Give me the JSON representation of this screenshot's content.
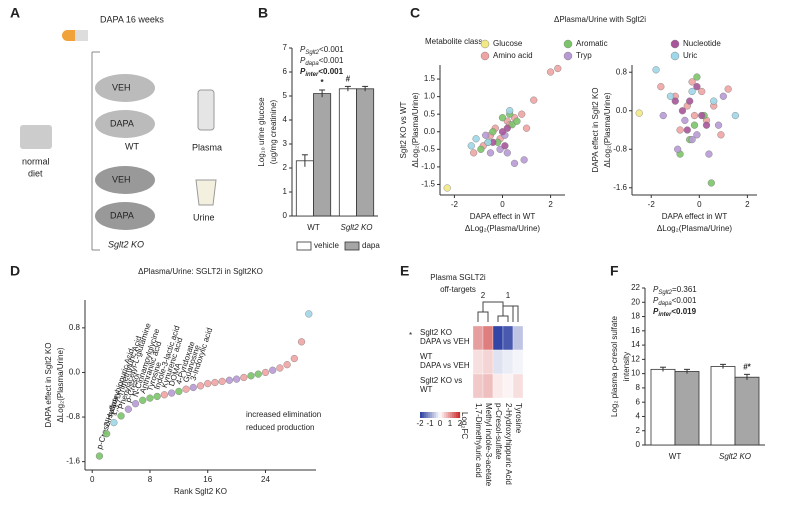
{
  "panel_a": {
    "panel": "A",
    "drug": "DAPA 16 weeks",
    "groups": [
      {
        "rows": [
          "VEH",
          "DAPA"
        ],
        "genotype": "WT"
      },
      {
        "rows": [
          "VEH",
          "DAPA"
        ],
        "genotype": "Sglt2 KO"
      }
    ],
    "diet": [
      "normal",
      "diet"
    ],
    "samples": [
      "Plasma",
      "Urine"
    ]
  },
  "chart_data": [
    {
      "type": "bar",
      "panel": "B",
      "annotations": [
        {
          "symbol": "P",
          "sub": "Sglt2",
          "text": "<0.001"
        },
        {
          "symbol": "P",
          "sub": "dapa",
          "text": "<0.001"
        },
        {
          "symbol": "P",
          "sub": "inter",
          "text": "<0.001"
        }
      ],
      "ylabel": [
        "Log₁₀ urine glucose",
        "(ug/mg creatinine)"
      ],
      "categories": [
        "WT",
        "Sglt2 KO"
      ],
      "series": [
        {
          "name": "vehicle",
          "color": "#ffffff",
          "values": [
            2.3,
            5.3
          ],
          "errors": [
            0.25,
            0.1
          ],
          "markers": [
            null,
            "#"
          ]
        },
        {
          "name": "dapa",
          "color": "#a6a6a6",
          "values": [
            5.1,
            5.3
          ],
          "errors": [
            0.15,
            0.1
          ],
          "markers": [
            "*",
            null
          ]
        }
      ],
      "ylim": [
        0,
        7
      ],
      "yticks": [
        0,
        1,
        2,
        3,
        4,
        5,
        6,
        7
      ],
      "legend": "bottom"
    },
    {
      "type": "scatter",
      "panel": "C",
      "title": "ΔPlasma/Urine with Sglt2i",
      "legend_title": "Metabolite class",
      "xlabel": [
        "DAPA effect in WT",
        "ΔLog₂(Plasma/Urine)"
      ],
      "ylabel": [
        "Sglt2 KO vs WT",
        "ΔLog₂(Plasma/Urine)"
      ],
      "series": [
        {
          "name": "Glucose",
          "color": "#f3e983",
          "x": [
            -2.3
          ],
          "values": [
            -1.6
          ]
        },
        {
          "name": "Amino acid",
          "color": "#f0a3a3",
          "x": [
            -1.2,
            -0.8,
            -0.5,
            -0.3,
            0.2,
            0.5,
            0.8,
            1.0,
            1.3,
            2.0,
            -0.1,
            0.3,
            2.3
          ],
          "values": [
            -0.6,
            -0.4,
            -0.1,
            0.1,
            0.3,
            0.4,
            0.5,
            0.1,
            0.9,
            1.7,
            -0.2,
            0.2,
            1.8
          ]
        },
        {
          "name": "Aromatic",
          "color": "#7cc46a",
          "x": [
            -0.9,
            -0.6,
            -0.2,
            0.0,
            0.3,
            0.4,
            0.6,
            -0.4
          ],
          "values": [
            -0.5,
            -0.3,
            -0.3,
            0.4,
            0.5,
            0.2,
            0.3,
            0.0
          ]
        },
        {
          "name": "Tryp",
          "color": "#b79ad4",
          "x": [
            -0.7,
            -0.5,
            -0.1,
            0.1,
            0.5,
            0.9,
            0.2
          ],
          "values": [
            -0.1,
            -0.6,
            -0.5,
            -0.1,
            -0.9,
            -0.8,
            -0.6
          ]
        },
        {
          "name": "Nucleotide",
          "color": "#a8559a",
          "x": [
            -0.4,
            0.0,
            0.2,
            0.1
          ],
          "values": [
            -0.3,
            0.0,
            0.1,
            -0.4
          ]
        },
        {
          "name": "Uric",
          "color": "#9fd6e8",
          "x": [
            -1.3,
            -1.1,
            -0.6,
            0.3
          ],
          "values": [
            -0.4,
            -0.2,
            -0.3,
            0.6
          ]
        }
      ],
      "xlim": [
        -2.6,
        2.6
      ],
      "xticks": [
        -2,
        0,
        2
      ],
      "ylim": [
        -1.8,
        1.9
      ],
      "yticks": [
        {
          "value": -1.5,
          "label": "-1.5"
        },
        {
          "value": -1,
          "label": "-1.0"
        },
        {
          "value": -0.5,
          "label": "-0.5"
        },
        {
          "value": 0,
          "label": "0.0"
        },
        {
          "value": 0.5,
          "label": "0.5"
        },
        {
          "value": 1,
          "label": "1.0"
        },
        {
          "value": 1.5,
          "label": "1.5"
        }
      ]
    },
    {
      "type": "scatter",
      "xlabel": [
        "DAPA effect in WT",
        "ΔLog₂(Plasma/Urine)"
      ],
      "ylabel": [
        "DAPA effect in Sglt2 KO",
        "ΔLog₂(Plasma/Urine)"
      ],
      "series": [
        {
          "color": "#f3e983",
          "x": [
            -2.5
          ],
          "values": [
            -0.05
          ]
        },
        {
          "color": "#f0a3a3",
          "x": [
            -1.6,
            -1.0,
            -0.8,
            -0.5,
            -0.3,
            0.1,
            0.3,
            0.6,
            0.9,
            1.2,
            -0.2
          ],
          "values": [
            0.5,
            0.3,
            -0.4,
            0.1,
            0.6,
            0.4,
            -0.2,
            0.1,
            -0.5,
            0.45,
            -0.1
          ]
        },
        {
          "color": "#7cc46a",
          "x": [
            -0.8,
            -0.4,
            -0.2,
            0.2,
            0.5,
            -0.1
          ],
          "values": [
            -0.9,
            -0.6,
            -0.3,
            -0.1,
            -1.5,
            0.7
          ]
        },
        {
          "color": "#b79ad4",
          "x": [
            -1.5,
            -0.9,
            -0.6,
            -0.3,
            0.4,
            0.8,
            1.0,
            -0.1
          ],
          "values": [
            -0.1,
            -0.8,
            -0.2,
            -0.6,
            -0.9,
            -0.3,
            0.3,
            -0.5
          ]
        },
        {
          "color": "#a8559a",
          "x": [
            -1.0,
            -0.7,
            -0.4,
            -0.1,
            0.1,
            0.3,
            -0.5
          ],
          "values": [
            0.2,
            0.0,
            0.2,
            0.5,
            -0.1,
            -0.3,
            -0.4
          ]
        },
        {
          "color": "#9fd6e8",
          "x": [
            -1.8,
            -1.2,
            -0.3,
            0.6,
            1.5
          ],
          "values": [
            0.85,
            0.3,
            0.4,
            0.2,
            -0.1
          ]
        }
      ],
      "xlim": [
        -2.8,
        2.4
      ],
      "xticks": [
        -2,
        0,
        2
      ],
      "ylim": [
        -1.75,
        0.95
      ],
      "yticks": [
        -1.6,
        -0.8,
        {
          "value": 0,
          "label": "0.0"
        },
        0.8
      ]
    },
    {
      "type": "scatter",
      "panel": "D",
      "title": "ΔPlasma/Urine: SGLT2i in Sglt2KO",
      "xlabel": "Rank Sglt2 KO",
      "ylabel": [
        "DAPA effect in Sglt2 KO",
        "ΔLog₂(Plasma/Urine)"
      ],
      "annotations": [
        "increased elimination",
        "reduced production"
      ],
      "x": [
        1,
        2,
        3,
        4,
        5,
        6,
        7,
        8,
        9,
        10,
        11,
        12,
        13,
        14,
        15,
        16,
        17,
        18,
        19,
        20,
        21,
        22,
        23,
        24,
        25,
        26,
        27,
        28,
        29,
        30
      ],
      "values": [
        -1.5,
        -1.1,
        -0.9,
        -0.78,
        -0.66,
        -0.56,
        -0.5,
        -0.46,
        -0.43,
        -0.4,
        -0.37,
        -0.34,
        -0.3,
        -0.27,
        -0.24,
        -0.2,
        -0.18,
        -0.16,
        -0.14,
        -0.12,
        -0.09,
        -0.06,
        -0.03,
        0.0,
        0.04,
        0.08,
        0.14,
        0.25,
        0.55,
        1.05
      ],
      "colors": [
        "#7cc46a",
        "#7cc46a",
        "#9fd6e8",
        "#7cc46a",
        "#b79ad4",
        "#b79ad4",
        "#7cc46a",
        "#7cc46a",
        "#7cc46a",
        "#f0a3a3",
        "#b79ad4",
        "#7cc46a",
        "#f0a3a3",
        "#b79ad4",
        "#f0a3a3",
        "#f0a3a3",
        "#f0a3a3",
        "#f0a3a3",
        "#b79ad4",
        "#b79ad4",
        "#f0a3a3",
        "#7cc46a",
        "#7cc46a",
        "#f0a3a3",
        "#b79ad4",
        "#f0a3a3",
        "#f0a3a3",
        "#f0a3a3",
        "#f0a3a3",
        "#9fd6e8"
      ],
      "labels": [
        "p-Cresol-sulfate",
        "2-Hydroxyhippuric Acid",
        "1,3,7-Trimethyluric Acid",
        "Phenylacetyl-L-glutamine",
        "p-Cresol",
        "N-Cinnamoylglycine",
        "Anthranilic acid",
        "Tyrosine",
        "Indole-3-lactic acid",
        "Kynurenic acid",
        "DOMA",
        "4-Pyridoxate",
        "Guanosine",
        "3-Indoxylic acid",
        null,
        null,
        null,
        null,
        null,
        null,
        null,
        null,
        null,
        null,
        null,
        null,
        null,
        null,
        null,
        null
      ],
      "xlim": [
        -1,
        31
      ],
      "xticks": [
        0,
        8,
        16,
        24
      ],
      "ylim": [
        -1.75,
        1.3
      ],
      "yticks": [
        -1.6,
        -0.8,
        {
          "value": 0,
          "label": "0.0"
        },
        0.8
      ]
    },
    {
      "type": "heatmap",
      "panel": "E",
      "title": [
        "Plasma SGLT2i",
        "off-targets"
      ],
      "marker": "*",
      "clusters": [
        "2",
        "1"
      ],
      "rows": [
        [
          "Sglt2 KO",
          "DAPA vs VEH"
        ],
        [
          "WT",
          "DAPA vs VEH"
        ],
        [
          "Sglt2 KO vs",
          "WT"
        ]
      ],
      "columns": [
        "1,7-Dimethyluric acid",
        "Methyl indole-3-acetate",
        "p-Cresol-sulfate",
        "2-Hydroxyhippuric Acid",
        "Tyrosine"
      ],
      "values": [
        [
          0.9,
          1.2,
          -1.9,
          -1.7,
          -0.6
        ],
        [
          0.3,
          0.4,
          -0.3,
          -0.2,
          -0.1
        ],
        [
          0.5,
          0.6,
          0.2,
          0.1,
          0.3
        ]
      ],
      "zlim": [
        -2,
        2
      ],
      "colorbar_label": "Log₂FC",
      "colorbar_ticks": [
        -2,
        -1,
        0,
        1,
        2
      ]
    },
    {
      "type": "bar",
      "panel": "F",
      "annotations": [
        {
          "symbol": "P",
          "sub": "Sglt2",
          "text": "=0.361"
        },
        {
          "symbol": "P",
          "sub": "dapa",
          "text": "<0.001"
        },
        {
          "symbol": "P",
          "sub": "inter",
          "text": "<0.019"
        }
      ],
      "ylabel": [
        "Log₂ plasma p-cresol sulfate",
        "intensity"
      ],
      "categories": [
        "WT",
        "Sglt2 KO"
      ],
      "series": [
        {
          "color": "#ffffff",
          "values": [
            10.6,
            11.0
          ],
          "errors": [
            0.3,
            0.3
          ]
        },
        {
          "color": "#a6a6a6",
          "values": [
            10.3,
            9.5
          ],
          "errors": [
            0.3,
            0.4
          ],
          "markers": [
            null,
            "#*"
          ]
        }
      ],
      "ylim": [
        0,
        22
      ],
      "yticks": [
        0,
        2,
        4,
        6,
        8,
        10,
        12,
        14,
        16,
        18,
        20,
        22
      ]
    }
  ]
}
